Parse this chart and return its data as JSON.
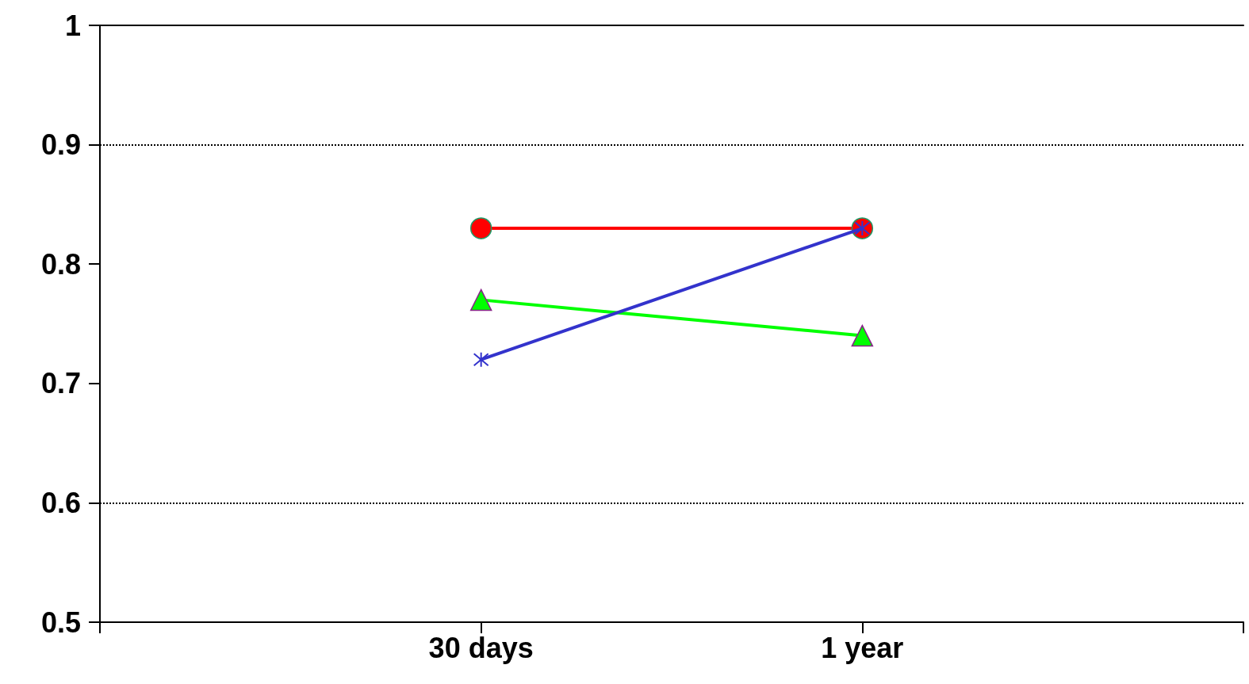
{
  "chart_data": {
    "type": "line",
    "categories": [
      null,
      "30 days",
      "1 year",
      null
    ],
    "series": [
      {
        "color": "#ff0000",
        "marker": "circle",
        "values": [
          null,
          0.83,
          0.83,
          null
        ]
      },
      {
        "color": "#00ff00",
        "marker": "triangle",
        "values": [
          null,
          0.77,
          0.74,
          null
        ]
      },
      {
        "color": "#3333cc",
        "marker": "cross",
        "values": [
          null,
          0.72,
          0.83,
          null
        ]
      }
    ],
    "ylim": [
      0.5,
      1
    ],
    "yticks": [
      0.5,
      0.6,
      0.7,
      0.8,
      0.9,
      1
    ],
    "grid": false,
    "ref_lines": [
      {
        "axis": "y",
        "value": 0.9,
        "color": "#000000",
        "line_style": "dotted"
      },
      {
        "axis": "y",
        "value": 0.6,
        "color": "#000000",
        "line_style": "dotted"
      }
    ]
  }
}
